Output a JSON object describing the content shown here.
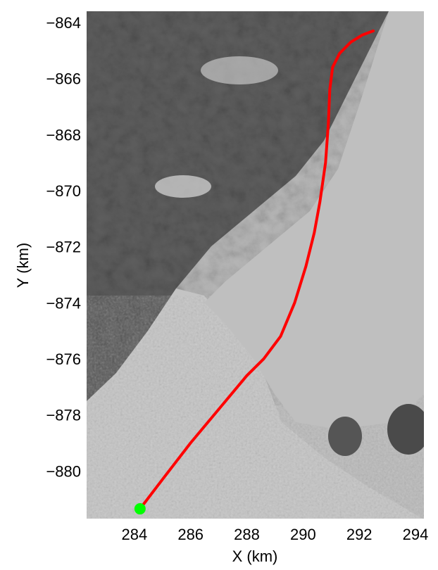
{
  "chart_data": {
    "type": "line",
    "background": "grayscale satellite image",
    "xlabel": "X (km)",
    "ylabel": "Y (km)",
    "xlim": [
      282.3,
      294.3
    ],
    "ylim": [
      -881.7,
      -863.6
    ],
    "xticks": [
      {
        "value": 284,
        "label": "284"
      },
      {
        "value": 286,
        "label": "286"
      },
      {
        "value": 288,
        "label": "288"
      },
      {
        "value": 290,
        "label": "290"
      },
      {
        "value": 292,
        "label": "292"
      },
      {
        "value": 294,
        "label": "294"
      }
    ],
    "yticks": [
      {
        "value": -864,
        "label": "−864"
      },
      {
        "value": -866,
        "label": "−866"
      },
      {
        "value": -868,
        "label": "−868"
      },
      {
        "value": -870,
        "label": "−870"
      },
      {
        "value": -872,
        "label": "−872"
      },
      {
        "value": -874,
        "label": "−874"
      },
      {
        "value": -876,
        "label": "−876"
      },
      {
        "value": -878,
        "label": "−878"
      },
      {
        "value": -880,
        "label": "−880"
      }
    ],
    "series": [
      {
        "color": "#ff0000",
        "x": [
          284.2,
          285.0,
          286.0,
          287.0,
          288.0,
          288.6,
          289.2,
          289.7,
          290.1,
          290.4,
          290.6,
          290.8,
          290.9,
          290.95,
          291.05,
          291.3,
          291.7,
          292.1,
          292.5
        ],
        "y": [
          -881.35,
          -880.3,
          -879.0,
          -877.8,
          -876.6,
          -876.0,
          -875.2,
          -874.0,
          -872.7,
          -871.5,
          -870.4,
          -869.0,
          -867.6,
          -866.4,
          -865.6,
          -865.1,
          -864.7,
          -864.45,
          -864.3
        ]
      }
    ],
    "start_marker": {
      "x": 284.2,
      "y": -881.35,
      "color": "#00ff00"
    },
    "grid": false
  }
}
